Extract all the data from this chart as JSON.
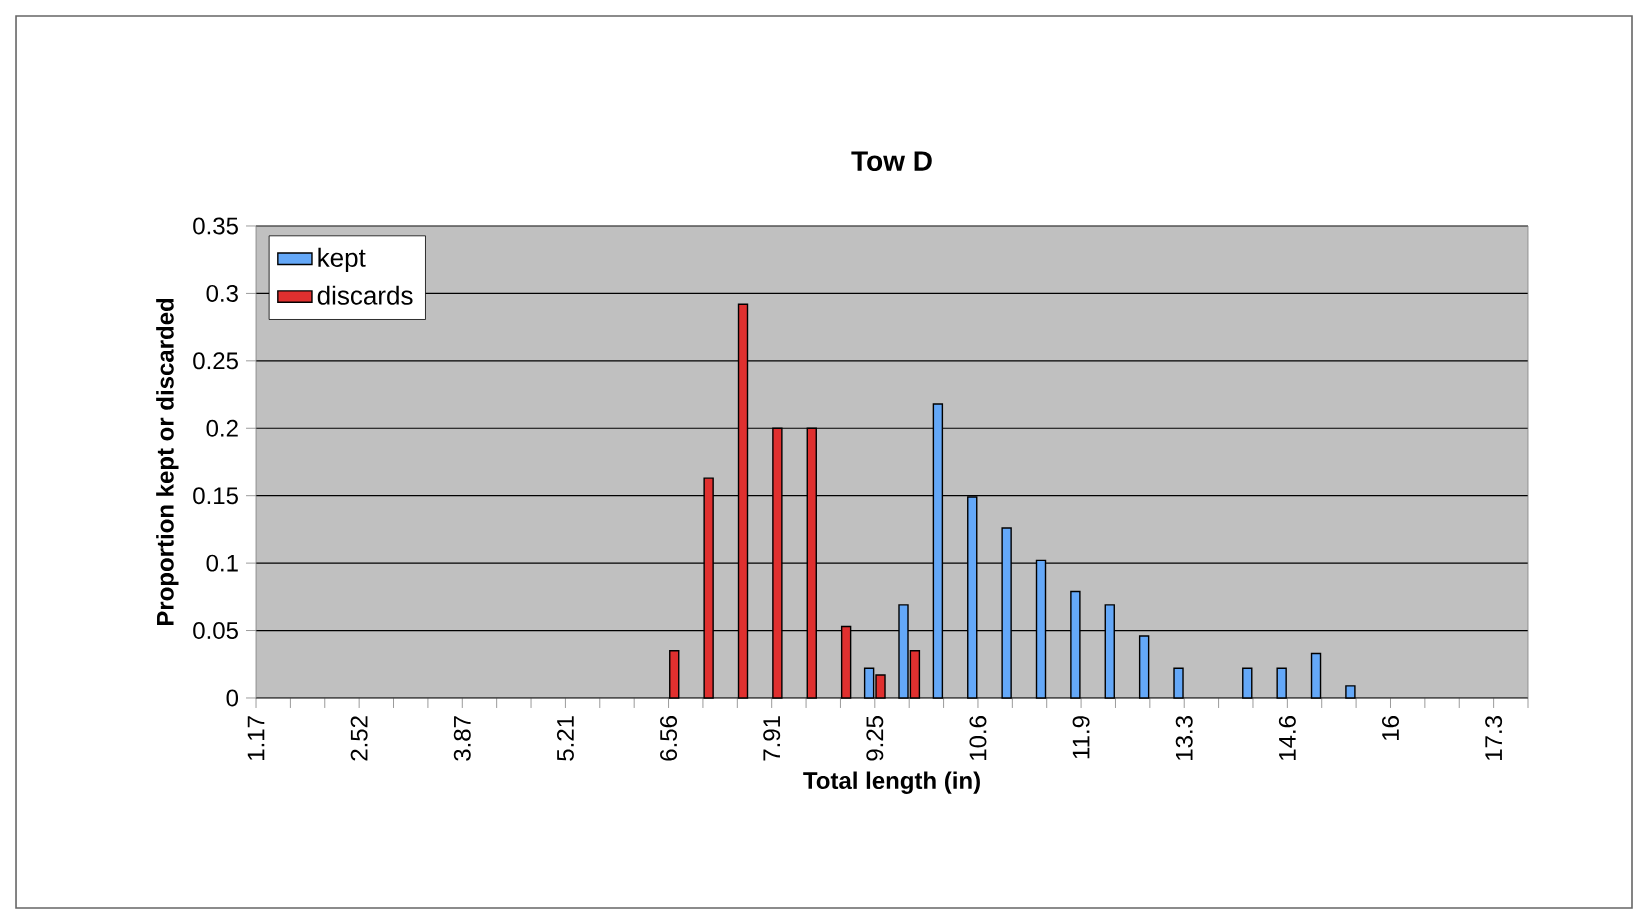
{
  "chart_data": {
    "type": "bar",
    "title": "Tow D",
    "xlabel": "Total length (in)",
    "ylabel": "Proportion kept or discarded",
    "categories": [
      "1.17",
      null,
      null,
      "2.52",
      null,
      null,
      "3.87",
      null,
      null,
      "5.21",
      null,
      null,
      "6.56",
      null,
      null,
      "7.91",
      null,
      null,
      "9.25",
      null,
      null,
      "10.6",
      null,
      null,
      "11.9",
      null,
      null,
      "13.3",
      null,
      null,
      "14.6",
      null,
      null,
      "16",
      null,
      null,
      "17.3",
      null
    ],
    "series": [
      {
        "name": "kept",
        "color": "#64a8f8",
        "values": [
          null,
          null,
          null,
          null,
          null,
          null,
          null,
          null,
          null,
          null,
          null,
          null,
          null,
          null,
          null,
          null,
          null,
          null,
          0.022,
          0.069,
          0.218,
          0.149,
          0.126,
          0.102,
          0.079,
          0.069,
          0.046,
          0.022,
          null,
          0.022,
          0.022,
          0.033,
          0.009,
          null,
          null,
          null,
          null,
          null
        ]
      },
      {
        "name": "discards",
        "color": "#e0302f",
        "values": [
          null,
          null,
          null,
          null,
          null,
          null,
          null,
          null,
          null,
          null,
          null,
          null,
          0.035,
          0.163,
          0.292,
          0.2,
          0.2,
          0.053,
          0.017,
          0.035,
          null,
          null,
          null,
          null,
          null,
          null,
          null,
          null,
          null,
          null,
          null,
          null,
          null,
          null,
          null,
          null,
          null,
          null
        ]
      }
    ],
    "ylim": [
      0,
      0.35
    ],
    "yticks": [
      0,
      0.05,
      0.1,
      0.15,
      0.2,
      0.25,
      0.3,
      0.35
    ],
    "grid": "y",
    "legend": "top left"
  }
}
